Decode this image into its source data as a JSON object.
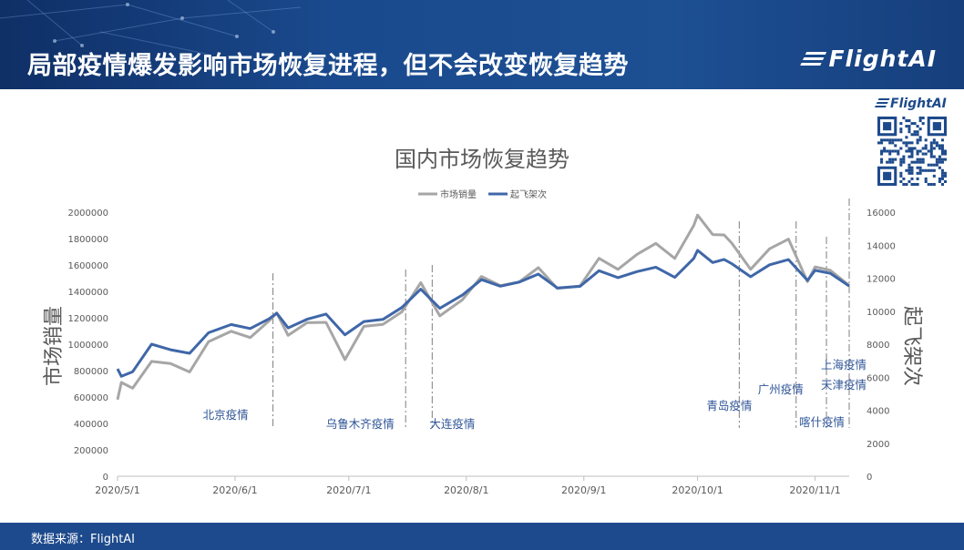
{
  "header": {
    "title": "局部疫情爆发影响市场恢复进程，但不会改变恢复趋势",
    "logo": "FlightAI"
  },
  "qr": {
    "logo": "FlightAI"
  },
  "footer": {
    "source": "数据来源：FlightAI"
  },
  "colors": {
    "gray": "#a6a6a6",
    "blue": "#3f67a8",
    "banner": "#1d4a8c",
    "annotation": "#2f5597"
  },
  "chart_data": {
    "type": "line",
    "title": "国内市场恢复趋势",
    "ylabel": "市场销量",
    "y2label": "起飞架次",
    "ylim": [
      0,
      2000000
    ],
    "y2lim": [
      0,
      16000
    ],
    "yticks": [
      "0",
      "200000",
      "400000",
      "600000",
      "800000",
      "1000000",
      "1200000",
      "1400000",
      "1600000",
      "1800000",
      "2000000"
    ],
    "y2ticks": [
      "0",
      "2000",
      "4000",
      "6000",
      "8000",
      "10000",
      "12000",
      "14000",
      "16000"
    ],
    "xticks": [
      "2020/5/1",
      "2020/6/1",
      "2020/7/1",
      "2020/8/1",
      "2020/9/1",
      "2020/10/1",
      "2020/11/1"
    ],
    "xrange": [
      "2020-05-01",
      "2020-11-10"
    ],
    "legend": "top",
    "series": [
      {
        "name": "市场销量",
        "axis": "left",
        "x": [
          "2020-05-01",
          "2020-05-02",
          "2020-05-05",
          "2020-05-10",
          "2020-05-15",
          "2020-05-20",
          "2020-05-25",
          "2020-05-31",
          "2020-06-05",
          "2020-06-10",
          "2020-06-12",
          "2020-06-15",
          "2020-06-20",
          "2020-06-25",
          "2020-06-30",
          "2020-07-05",
          "2020-07-10",
          "2020-07-15",
          "2020-07-20",
          "2020-07-25",
          "2020-07-31",
          "2020-08-05",
          "2020-08-10",
          "2020-08-15",
          "2020-08-20",
          "2020-08-25",
          "2020-08-31",
          "2020-09-05",
          "2020-09-10",
          "2020-09-15",
          "2020-09-20",
          "2020-09-25",
          "2020-09-30",
          "2020-10-01",
          "2020-10-05",
          "2020-10-08",
          "2020-10-10",
          "2020-10-15",
          "2020-10-20",
          "2020-10-25",
          "2020-10-30",
          "2020-11-01",
          "2020-11-05",
          "2020-11-10"
        ],
        "values": [
          680000,
          600000,
          700000,
          870000,
          820000,
          900000,
          920000,
          960000,
          1100000,
          1150000,
          1220000,
          1150000,
          1080000,
          1000000,
          950000,
          1080000,
          1150000,
          1300000,
          1400000,
          1380000,
          1420000,
          1430000,
          1460000,
          1500000,
          1530000,
          1560000,
          1540000,
          1540000,
          1600000,
          1680000,
          1730000,
          1760000,
          1800000,
          1840000,
          1880000,
          1800000,
          1750000,
          1650000,
          1640000,
          1630000,
          1540000,
          1530000,
          1560000,
          1500000
        ]
      },
      {
        "name": "起飞架次",
        "axis": "right",
        "x": [
          "2020-05-01",
          "2020-05-02",
          "2020-05-05",
          "2020-05-10",
          "2020-05-15",
          "2020-05-20",
          "2020-05-25",
          "2020-05-31",
          "2020-06-05",
          "2020-06-10",
          "2020-06-12",
          "2020-06-15",
          "2020-06-20",
          "2020-06-25",
          "2020-06-30",
          "2020-07-05",
          "2020-07-10",
          "2020-07-15",
          "2020-07-20",
          "2020-07-25",
          "2020-07-31",
          "2020-08-05",
          "2020-08-10",
          "2020-08-15",
          "2020-08-20",
          "2020-08-25",
          "2020-08-31",
          "2020-09-05",
          "2020-09-10",
          "2020-09-15",
          "2020-09-20",
          "2020-09-25",
          "2020-09-30",
          "2020-10-01",
          "2020-10-05",
          "2020-10-08",
          "2020-10-10",
          "2020-10-15",
          "2020-10-20",
          "2020-10-25",
          "2020-10-30",
          "2020-11-01",
          "2020-11-05",
          "2020-11-10"
        ],
        "values": [
          7000,
          5500,
          6500,
          8000,
          7500,
          8000,
          8200,
          8500,
          9200,
          9400,
          9800,
          9400,
          9100,
          9000,
          8900,
          9100,
          9500,
          10500,
          11000,
          11000,
          11400,
          11500,
          11600,
          11900,
          12000,
          12100,
          12000,
          11900,
          12200,
          12400,
          12500,
          12600,
          12700,
          13000,
          13200,
          13000,
          12800,
          12500,
          12400,
          12300,
          12200,
          12200,
          12300,
          11800
        ]
      }
    ],
    "annotations": [
      {
        "label": "北京疫情",
        "date": "2020-06-11"
      },
      {
        "label": "乌鲁木齐疫情",
        "date": "2020-07-16"
      },
      {
        "label": "大连疫情",
        "date": "2020-07-23"
      },
      {
        "label": "青岛疫情",
        "date": "2020-10-12"
      },
      {
        "label": "广州疫情",
        "date": "2020-10-27"
      },
      {
        "label": "喀什疫情",
        "date": "2020-11-04"
      },
      {
        "label": "上海疫情",
        "date": "2020-11-20"
      },
      {
        "label": "天津疫情",
        "date": "2020-11-20"
      }
    ]
  }
}
